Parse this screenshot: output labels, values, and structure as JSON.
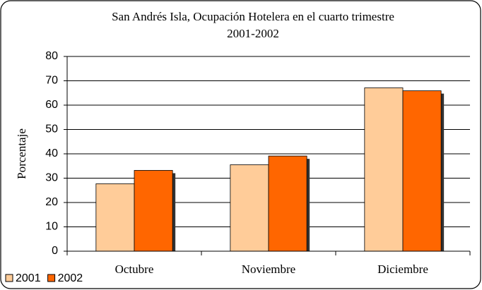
{
  "chart_data": {
    "type": "bar",
    "title": [
      "San Andrés Isla, Ocupación Hotelera en el cuarto trimestre",
      "2001-2002"
    ],
    "y_label": "Porcentaje",
    "categories": [
      "Octubre",
      "Noviembre",
      "Diciembre"
    ],
    "series": [
      {
        "name": "2001",
        "color": "#ffcc99",
        "values": [
          27.7,
          35.5,
          67.1
        ]
      },
      {
        "name": "2002",
        "color": "#ff6600",
        "values": [
          33.2,
          39.1,
          65.9
        ]
      }
    ],
    "ylim": [
      0,
      80
    ],
    "yticks": [
      0,
      10,
      20,
      30,
      40,
      50,
      60,
      70,
      80
    ],
    "grid": true,
    "legend": "bottom-left"
  }
}
